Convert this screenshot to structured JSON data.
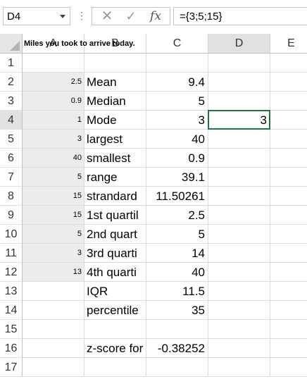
{
  "formula_bar": {
    "name_box": "D4",
    "separator": "⋮",
    "cancel_glyph": "✕",
    "enter_glyph": "✓",
    "fx_label": "fx",
    "formula": "={3;5;15}"
  },
  "columns": [
    "A",
    "B",
    "C",
    "D",
    "E"
  ],
  "rows": [
    "1",
    "2",
    "3",
    "4",
    "5",
    "6",
    "7",
    "8",
    "9",
    "10",
    "11",
    "12",
    "13",
    "14",
    "15",
    "16",
    "17"
  ],
  "a1_title": "Miles you took to arrive today.",
  "col_a": [
    "",
    "2.5",
    "0.9",
    "1",
    "3",
    "40",
    "5",
    "15",
    "15",
    "5",
    "3",
    "13",
    "",
    "",
    "",
    "",
    ""
  ],
  "col_b": [
    "",
    "Mean",
    "Median",
    "Mode",
    "largest",
    "smallest",
    "range",
    "strandard",
    "1st quartil",
    "2nd quart",
    "3rd quarti",
    "4th quarti",
    "IQR",
    "percentile",
    "",
    "z-score for",
    ""
  ],
  "col_c": [
    "",
    "9.4",
    "5",
    "3",
    "40",
    "0.9",
    "39.1",
    "11.50261",
    "2.5",
    "5",
    "14",
    "40",
    "11.5",
    "35",
    "",
    "-0.38252",
    ""
  ],
  "col_d": [
    "",
    "",
    "",
    "3",
    "",
    "",
    "",
    "",
    "",
    "",
    "",
    "",
    "",
    "",
    "",
    "",
    ""
  ],
  "colors": {
    "selection": "#217346",
    "header_bg": "#ffffff",
    "column_a_fill": "#ececec"
  }
}
